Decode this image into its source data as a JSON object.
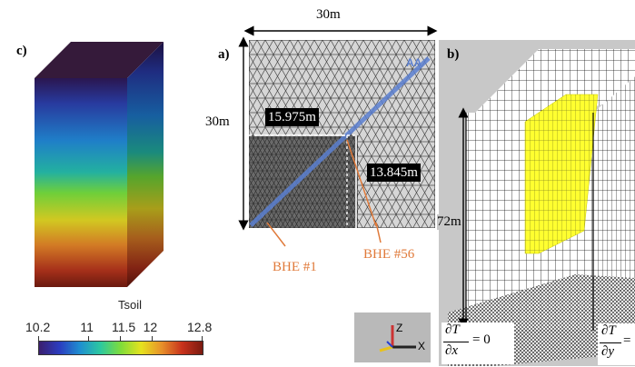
{
  "panel_c": {
    "label": "c)",
    "colorbar": {
      "title": "Tsoil",
      "ticks": [
        "10.2",
        "11",
        "11.5",
        "12",
        "12.8"
      ],
      "stops": [
        "#3b1f6e",
        "#2b3cbf",
        "#1f8fd0",
        "#2cc8a0",
        "#7fdc3a",
        "#e6e21e",
        "#e7902a",
        "#c8321c",
        "#7a1a10"
      ]
    }
  },
  "panel_a": {
    "label": "a)",
    "width_label": "30m",
    "height_label": "30m",
    "dx_label": "15.975m",
    "dy_label": "13.845m",
    "bhe_first": "BHE #1",
    "bhe_last": "BHE #56",
    "marker_label": "AA"
  },
  "panel_b": {
    "label": "b)",
    "depth_label": "72m",
    "bc_x": {
      "num": "∂T",
      "den": "∂x",
      "rhs": "= 0"
    },
    "bc_y": {
      "num": "∂T",
      "den": "∂y",
      "rhs": "="
    }
  },
  "axes_widget": {
    "z": "Z",
    "x": "X"
  },
  "colors": {
    "bhe_orange": "#e07a3a",
    "bhe_line": "#5b7fd0",
    "bhe_field": "#ffff20"
  }
}
